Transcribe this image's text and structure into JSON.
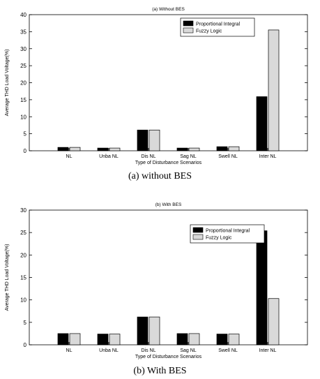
{
  "figures": [
    {
      "caption": "(a) without BES"
    },
    {
      "caption": "(b) With BES"
    }
  ],
  "chart_data": [
    {
      "type": "bar",
      "title": "(a) Without BES",
      "xlabel": "Type of Disturbance Scenarios",
      "ylabel": "Average THD Load Voltage(%)",
      "categories": [
        "NL",
        "Unba NL",
        "Dis NL",
        "Sag NL",
        "Swell NL",
        "Inter NL"
      ],
      "series": [
        {
          "name": "Proportional Integral",
          "color": "#000000",
          "values": [
            1.0,
            0.8,
            6.1,
            0.8,
            1.2,
            15.9
          ]
        },
        {
          "name": "Fuzzy Logic",
          "color": "#d9d9d9",
          "values": [
            1.0,
            0.8,
            6.1,
            0.8,
            1.2,
            35.5
          ]
        }
      ],
      "ylim": [
        0,
        40
      ],
      "yticks": [
        0,
        5,
        10,
        15,
        20,
        25,
        30,
        35,
        40
      ],
      "legend": "top-right",
      "grid": false
    },
    {
      "type": "bar",
      "title": "(b) With BES",
      "xlabel": "Type of Disturbance Scenarios",
      "ylabel": "Average THD Load Voltage(%)",
      "categories": [
        "NL",
        "Unba NL",
        "Dis NL",
        "Sag NL",
        "Swell NL",
        "Inter NL"
      ],
      "series": [
        {
          "name": "Proportional Integral",
          "color": "#000000",
          "values": [
            2.5,
            2.4,
            6.2,
            2.5,
            2.4,
            25.4
          ]
        },
        {
          "name": "Fuzzy Logic",
          "color": "#d9d9d9",
          "values": [
            2.5,
            2.4,
            6.2,
            2.5,
            2.4,
            10.3
          ]
        }
      ],
      "ylim": [
        0,
        30
      ],
      "yticks": [
        0,
        5,
        10,
        15,
        20,
        25,
        30
      ],
      "legend": "top-right",
      "grid": false
    }
  ]
}
